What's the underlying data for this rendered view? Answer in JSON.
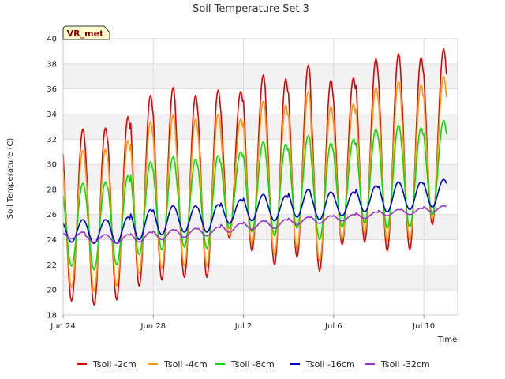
{
  "chart_data": {
    "type": "line",
    "title": "Soil Temperature Set 3",
    "xlabel": "Time",
    "ylabel": "Soil Temperature (C)",
    "badge": "VR_met",
    "x_unit": "date",
    "x_range": [
      "2024-06-24",
      "2024-07-11 12:00"
    ],
    "ylim": [
      18,
      40
    ],
    "yticks": [
      18,
      20,
      22,
      24,
      26,
      28,
      30,
      32,
      34,
      36,
      38,
      40
    ],
    "xticks": [
      {
        "label": "Jun 24",
        "date": "2024-06-24"
      },
      {
        "label": "Jun 28",
        "date": "2024-06-28"
      },
      {
        "label": "Jul 2",
        "date": "2024-07-02"
      },
      {
        "label": "Jul 6",
        "date": "2024-07-06"
      },
      {
        "label": "Jul 10",
        "date": "2024-07-10"
      }
    ],
    "grid": true,
    "legend_position": "bottom",
    "series": [
      {
        "name": "Tsoil -2cm",
        "color": "#e00000",
        "daily_max": [
          32.8,
          32.9,
          33.8,
          35.5,
          36.1,
          35.5,
          35.9,
          35.8,
          37.1,
          36.8,
          37.9,
          36.7,
          36.9,
          38.4,
          38.8,
          38.5,
          39.2
        ],
        "daily_min": [
          19.1,
          18.8,
          19.2,
          20.3,
          20.8,
          21.0,
          21.0,
          24.1,
          23.1,
          22.0,
          22.6,
          21.5,
          23.6,
          23.8,
          23.1,
          23.2,
          25.2
        ]
      },
      {
        "name": "Tsoil -4cm",
        "color": "#ff9900",
        "daily_max": [
          31.1,
          31.2,
          31.9,
          33.4,
          33.9,
          33.6,
          34.0,
          33.6,
          35.0,
          34.7,
          35.8,
          34.6,
          34.8,
          36.1,
          36.6,
          36.3,
          37.0
        ],
        "daily_min": [
          20.2,
          19.9,
          20.3,
          21.3,
          21.7,
          21.9,
          21.9,
          24.3,
          23.7,
          22.8,
          23.3,
          22.3,
          24.0,
          24.5,
          23.9,
          24.0,
          25.6
        ]
      },
      {
        "name": "Tsoil -8cm",
        "color": "#00e000",
        "daily_max": [
          28.5,
          28.6,
          29.1,
          30.2,
          30.6,
          30.4,
          30.7,
          31.0,
          31.8,
          31.6,
          32.3,
          31.7,
          32.0,
          32.8,
          33.1,
          32.9,
          33.5
        ],
        "daily_min": [
          21.9,
          21.6,
          22.0,
          22.8,
          23.2,
          23.4,
          23.3,
          24.9,
          24.6,
          24.3,
          24.9,
          24.0,
          25.0,
          25.3,
          24.9,
          25.0,
          26.0
        ]
      },
      {
        "name": "Tsoil -16cm",
        "color": "#0000cc",
        "daily_max": [
          25.6,
          25.6,
          25.8,
          26.4,
          26.7,
          26.7,
          26.8,
          27.2,
          27.6,
          27.5,
          28.0,
          27.8,
          27.8,
          28.3,
          28.6,
          28.6,
          28.8
        ],
        "daily_min": [
          23.8,
          23.7,
          23.7,
          24.0,
          24.4,
          24.6,
          24.6,
          25.3,
          25.5,
          25.5,
          25.8,
          25.6,
          25.9,
          26.2,
          26.2,
          26.4,
          26.6
        ]
      },
      {
        "name": "Tsoil -32cm",
        "color": "#9933cc",
        "daily_max": [
          24.6,
          24.4,
          24.4,
          24.6,
          24.8,
          24.9,
          25.0,
          25.3,
          25.5,
          25.6,
          25.8,
          25.9,
          26.0,
          26.2,
          26.4,
          26.5,
          26.7
        ],
        "daily_min": [
          24.1,
          23.8,
          23.7,
          23.8,
          24.0,
          24.2,
          24.3,
          24.6,
          24.8,
          24.9,
          25.2,
          25.3,
          25.5,
          25.7,
          25.9,
          26.0,
          26.2
        ]
      }
    ]
  }
}
